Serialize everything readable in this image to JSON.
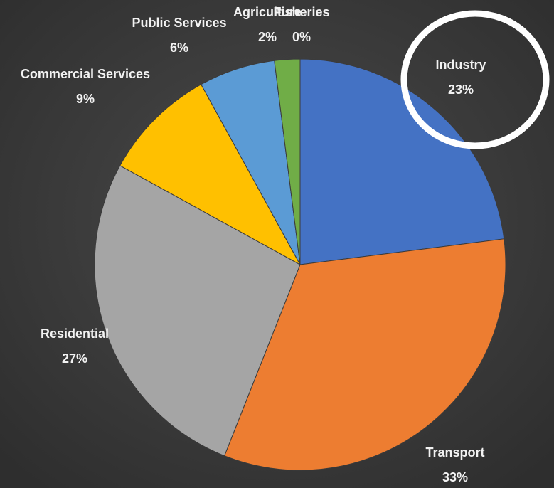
{
  "chart_data": {
    "type": "pie",
    "categories": [
      "Industry",
      "Transport",
      "Residential",
      "Commercial Services",
      "Public Services",
      "Agriculture",
      "Fisheries"
    ],
    "values": [
      23,
      33,
      27,
      9,
      6,
      2,
      0
    ],
    "value_labels": [
      "23%",
      "33%",
      "27%",
      "9%",
      "6%",
      "2%",
      "0%"
    ],
    "colors": [
      "#4472c4",
      "#ed7d31",
      "#a5a5a5",
      "#ffc000",
      "#5b9bd5",
      "#70ad47",
      "#264478"
    ]
  }
}
